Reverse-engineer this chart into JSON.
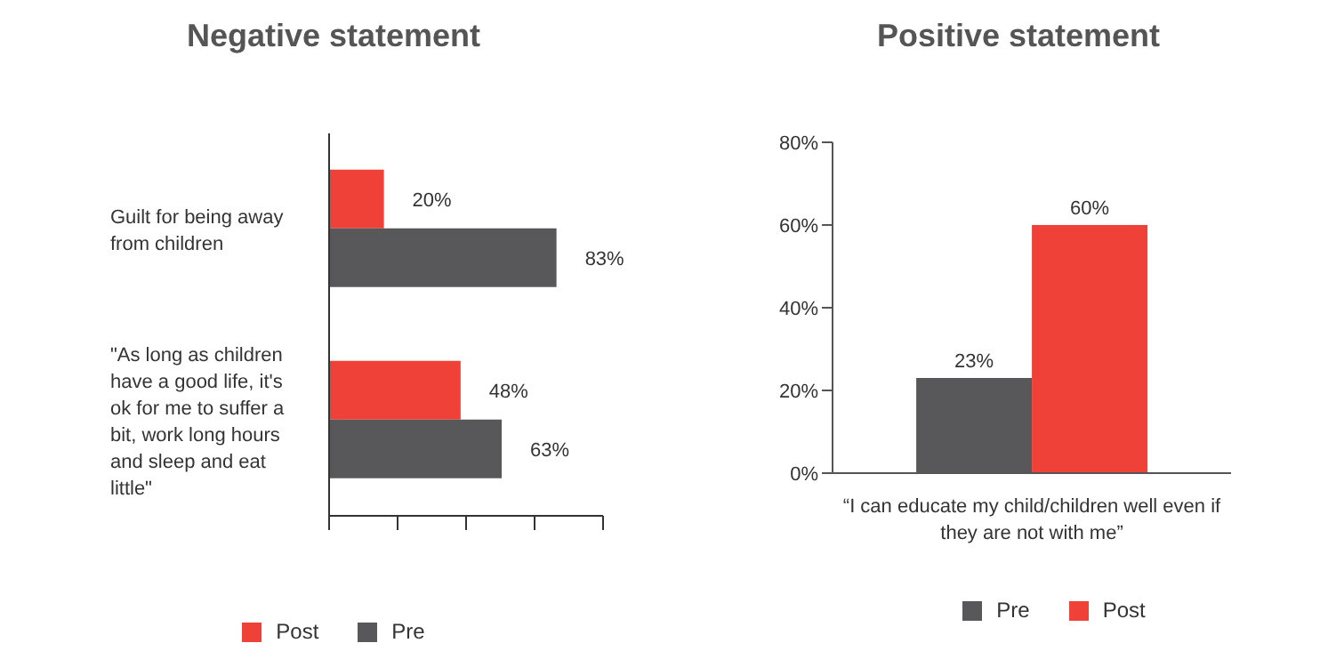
{
  "chart_data": [
    {
      "type": "bar",
      "title": "Negative statement",
      "orientation": "horizontal",
      "categories": [
        "Guilt for being away from children",
        "\"As long as children have a good life, it's ok for me to suffer a bit, work long hours and sleep and eat little\""
      ],
      "series": [
        {
          "name": "Post",
          "color": "#ef4137",
          "values": [
            20,
            48
          ],
          "value_labels": [
            "20%",
            "48%"
          ]
        },
        {
          "name": "Pre",
          "color": "#58585a",
          "values": [
            83,
            63
          ],
          "value_labels": [
            "83%",
            "63%"
          ]
        }
      ],
      "xlim": [
        0,
        100
      ],
      "xticks": [
        {
          "value": 0,
          "label": null
        },
        {
          "value": 25,
          "label": null
        },
        {
          "value": 50,
          "label": null
        },
        {
          "value": 75,
          "label": null
        },
        {
          "value": 100,
          "label": null
        }
      ],
      "tick_labels": "y",
      "grid": false,
      "legend": "bottom"
    },
    {
      "type": "bar",
      "title": "Positive statement",
      "categories": [
        "“I can educate my child/children well even if they are not with me”"
      ],
      "series": [
        {
          "name": "Pre",
          "color": "#58585a",
          "values": [
            23
          ],
          "value_labels": [
            "23%"
          ]
        },
        {
          "name": "Post",
          "color": "#ef4137",
          "values": [
            60
          ],
          "value_labels": [
            "60%"
          ]
        }
      ],
      "ylim": [
        0,
        80
      ],
      "yticks": [
        {
          "value": 0,
          "label": "0%"
        },
        {
          "value": 20,
          "label": "20%"
        },
        {
          "value": 40,
          "label": "40%"
        },
        {
          "value": 60,
          "label": "60%"
        },
        {
          "value": 80,
          "label": "80%"
        }
      ],
      "grid": false,
      "legend": "bottom"
    }
  ]
}
